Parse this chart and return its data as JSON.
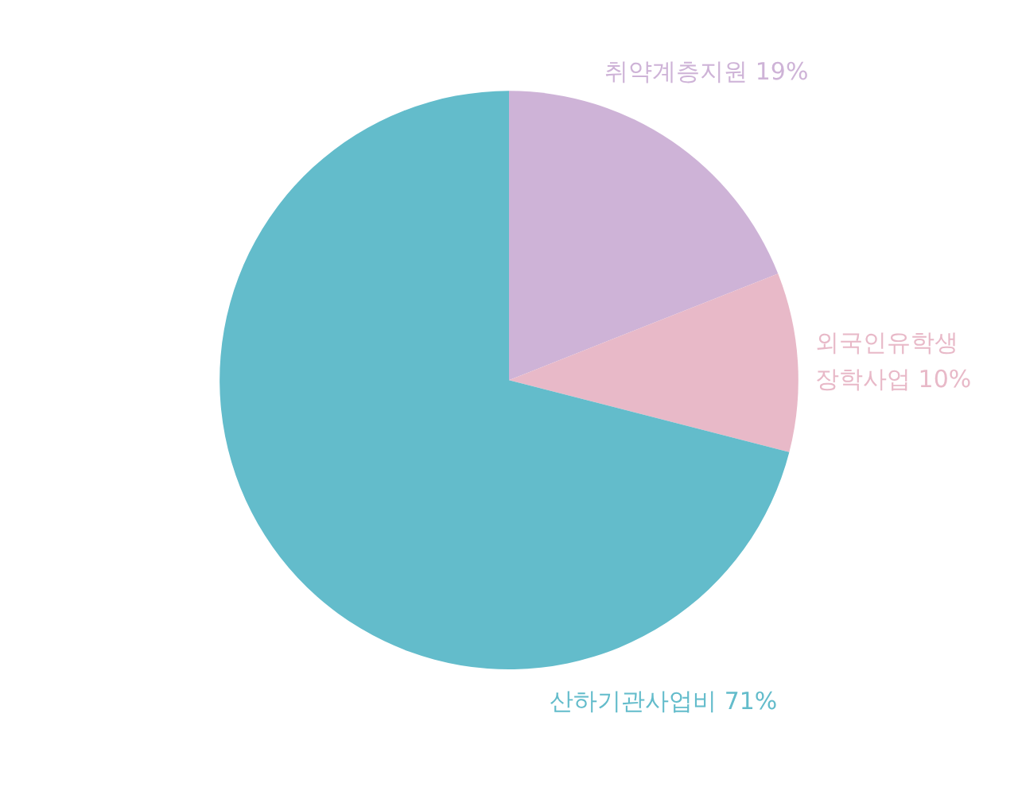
{
  "chart_data": {
    "type": "pie",
    "categories": [
      "취약계층지원",
      "외국인유학생 장학사업",
      "산하기관사업비"
    ],
    "values": [
      19,
      10,
      71
    ],
    "colors": [
      "#ceb3d7",
      "#e8b9c8",
      "#63bccb"
    ],
    "value_labels": [
      "19%",
      "10%",
      "71%"
    ]
  }
}
